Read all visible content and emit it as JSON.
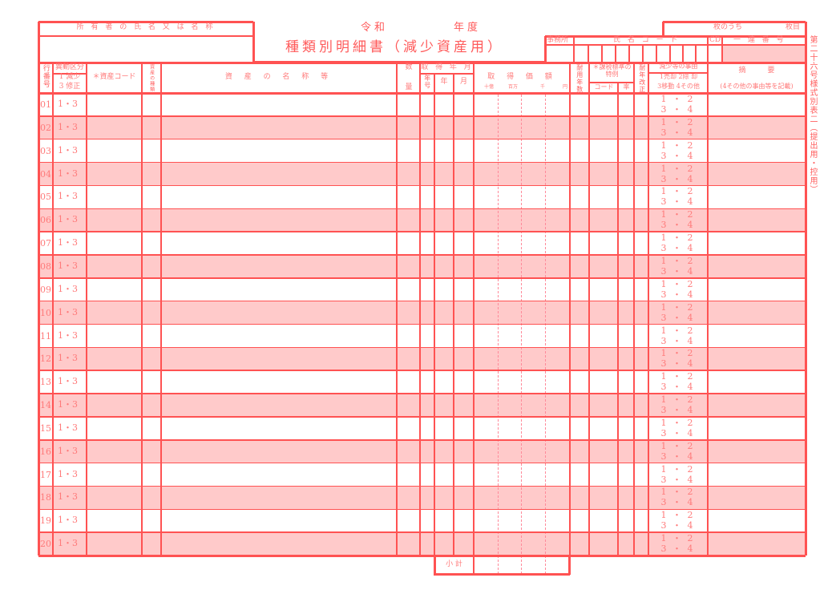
{
  "header": {
    "owner_label": "所 有 者 の 氏 名 又 は 名 称",
    "era_label": "令和",
    "year_label": "年度",
    "title": "種類別明細書（減少資産用）",
    "page_of_label": "枚のうち",
    "page_label": "枚目",
    "office_label": "事務所",
    "name_code_label": "氏 名 コ ー ド",
    "cd_label": "CD",
    "serial_label": "一 連 番 号",
    "form_id": "第二十六号様式別表二（提出用・控用）"
  },
  "columns": {
    "row_no": "行番号",
    "change_type": "異動区分",
    "change_type_opts1": "1 減少",
    "change_type_opts2": "3 修正",
    "asset_code": "＊資産コード",
    "asset_kind": "資産の種類",
    "asset_name": "資 産 の 名 称 等",
    "quantity_top": "数",
    "quantity_bottom": "量",
    "acq_ym": "取 得 年 月",
    "era": "年号",
    "year": "年",
    "month": "月",
    "acq_price": "取 得 価 額",
    "unit_100m": "十億",
    "unit_1m": "百万",
    "unit_1k": "千",
    "unit_yen": "円",
    "useful_life": "耐用年数",
    "tax_special": "＊課税標準の特例",
    "code": "コード",
    "rate": "率",
    "life_revision": "耐年改正",
    "reason": "減少等の事由",
    "reason_opts1": "1売却 2除 却",
    "reason_opts2": "3移動 4その他",
    "summary": "摘　　　要",
    "summary_note": "(4その他の事由等を記載)"
  },
  "rows": [
    {
      "no": "01",
      "type": "1・3",
      "r1": "1 ・ 2",
      "r2": "3 ・ 4"
    },
    {
      "no": "02",
      "type": "1・3",
      "r1": "1 ・ 2",
      "r2": "3 ・ 4"
    },
    {
      "no": "03",
      "type": "1・3",
      "r1": "1 ・ 2",
      "r2": "3 ・ 4"
    },
    {
      "no": "04",
      "type": "1・3",
      "r1": "1 ・ 2",
      "r2": "3 ・ 4"
    },
    {
      "no": "05",
      "type": "1・3",
      "r1": "1 ・ 2",
      "r2": "3 ・ 4"
    },
    {
      "no": "06",
      "type": "1・3",
      "r1": "1 ・ 2",
      "r2": "3 ・ 4"
    },
    {
      "no": "07",
      "type": "1・3",
      "r1": "1 ・ 2",
      "r2": "3 ・ 4"
    },
    {
      "no": "08",
      "type": "1・3",
      "r1": "1 ・ 2",
      "r2": "3 ・ 4"
    },
    {
      "no": "09",
      "type": "1・3",
      "r1": "1 ・ 2",
      "r2": "3 ・ 4"
    },
    {
      "no": "10",
      "type": "1・3",
      "r1": "1 ・ 2",
      "r2": "3 ・ 4"
    },
    {
      "no": "11",
      "type": "1・3",
      "r1": "1 ・ 2",
      "r2": "3 ・ 4"
    },
    {
      "no": "12",
      "type": "1・3",
      "r1": "1 ・ 2",
      "r2": "3 ・ 4"
    },
    {
      "no": "13",
      "type": "1・3",
      "r1": "1 ・ 2",
      "r2": "3 ・ 4"
    },
    {
      "no": "14",
      "type": "1・3",
      "r1": "1 ・ 2",
      "r2": "3 ・ 4"
    },
    {
      "no": "15",
      "type": "1・3",
      "r1": "1 ・ 2",
      "r2": "3 ・ 4"
    },
    {
      "no": "16",
      "type": "1・3",
      "r1": "1 ・ 2",
      "r2": "3 ・ 4"
    },
    {
      "no": "17",
      "type": "1・3",
      "r1": "1 ・ 2",
      "r2": "3 ・ 4"
    },
    {
      "no": "18",
      "type": "1・3",
      "r1": "1 ・ 2",
      "r2": "3 ・ 4"
    },
    {
      "no": "19",
      "type": "1・3",
      "r1": "1 ・ 2",
      "r2": "3 ・ 4"
    },
    {
      "no": "20",
      "type": "1・3",
      "r1": "1 ・ 2",
      "r2": "3 ・ 4"
    }
  ],
  "footer": {
    "subtotal": "小 計"
  },
  "colors": {
    "line": "#ff5252",
    "fill": "#ffcaca"
  }
}
